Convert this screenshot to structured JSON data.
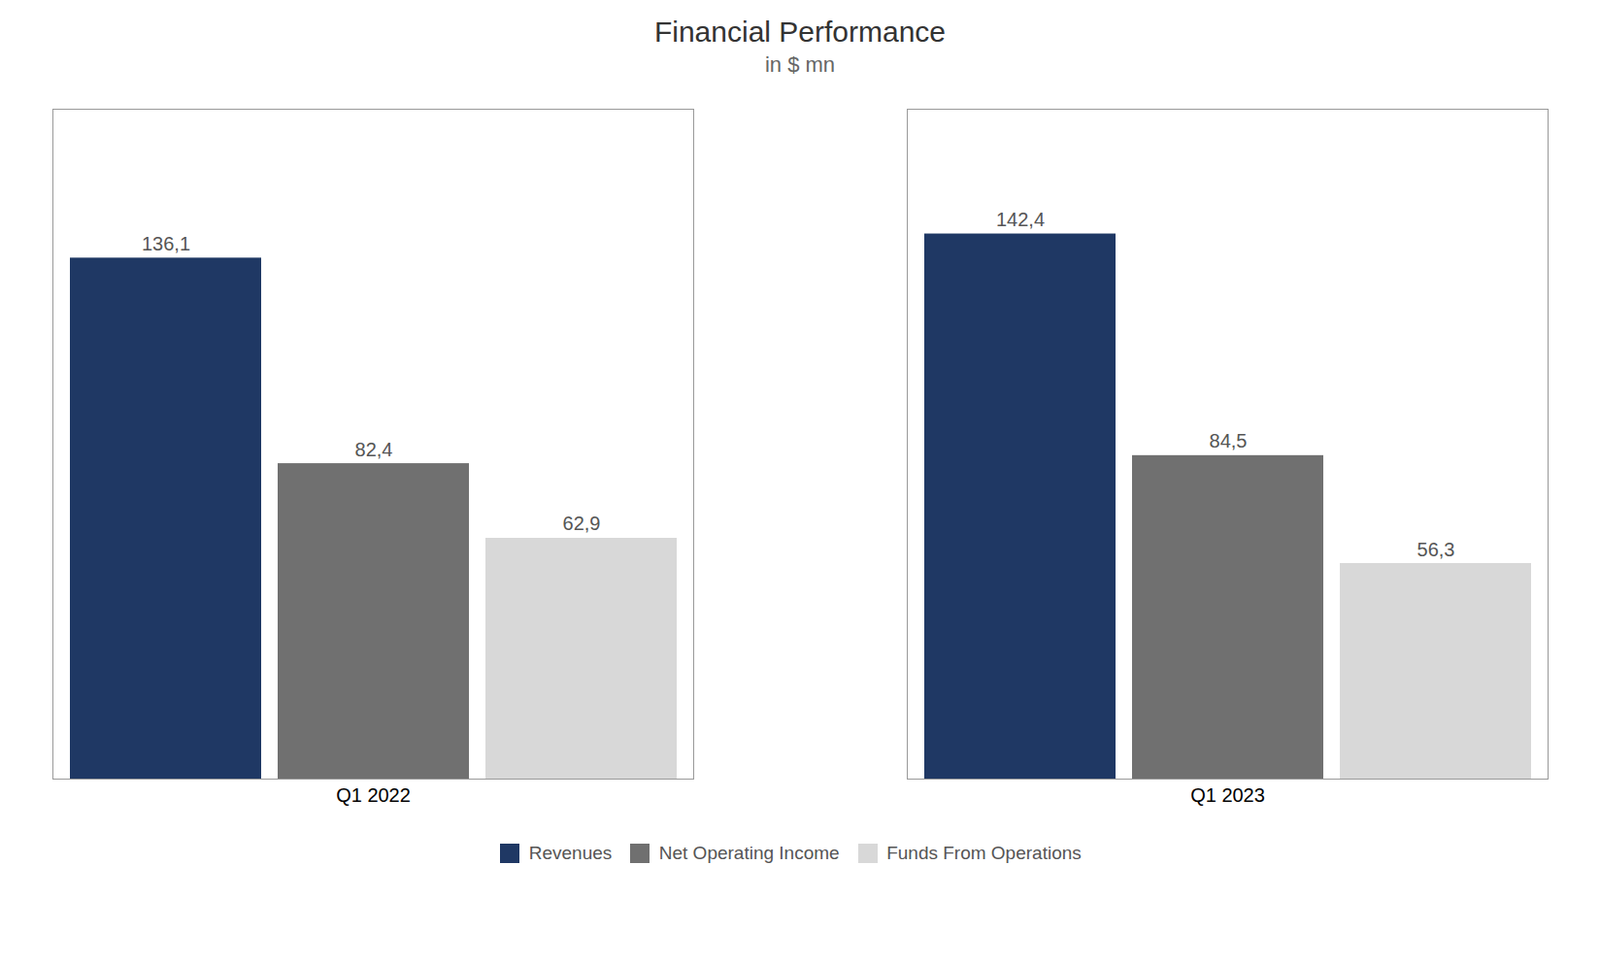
{
  "chart_data": {
    "type": "bar",
    "title": "Financial Performance",
    "subtitle": "in $ mn",
    "categories": [
      "Q1 2022",
      "Q1 2023"
    ],
    "series": [
      {
        "name": "Revenues",
        "color": "#1F3864",
        "values": [
          136.1,
          142.4
        ],
        "value_labels": [
          "136,1",
          "142,4"
        ]
      },
      {
        "name": "Net Operating Income",
        "color": "#707070",
        "values": [
          82.4,
          84.5
        ],
        "value_labels": [
          "82,4",
          "84,5"
        ]
      },
      {
        "name": "Funds From Operations",
        "color": "#d8d8d8",
        "values": [
          62.9,
          56.3
        ],
        "value_labels": [
          "62,9",
          "56,3"
        ]
      }
    ],
    "ylim": [
      0,
      175
    ],
    "yticks": [],
    "tick_labels": "x",
    "data_labels": true,
    "grid": false,
    "legend": "bottom"
  }
}
